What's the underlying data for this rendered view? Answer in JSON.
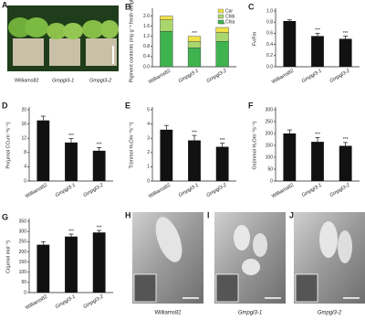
{
  "chart_data": [
    {
      "type": "stacked_bar",
      "panel": "B",
      "ylabel": "Pigment contents (mg g⁻¹ fresh weight)",
      "categories": [
        "Williams82",
        "Gmpgl3-1",
        "Gmpgl3-2"
      ],
      "series": [
        {
          "name": "Chla",
          "color": "#3fb34f",
          "values": [
            1.4,
            0.75,
            1.0
          ]
        },
        {
          "name": "Chlb",
          "color": "#a9d76e",
          "values": [
            0.45,
            0.25,
            0.35
          ]
        },
        {
          "name": "Car",
          "color": "#efe14a",
          "values": [
            0.15,
            0.2,
            0.2
          ]
        }
      ],
      "annotations": [
        null,
        "***",
        "***"
      ],
      "ylim": [
        0,
        2.2
      ],
      "yticks": [
        {
          "value": 0,
          "label": "0.0"
        },
        0.4,
        0.8,
        1.2,
        1.6,
        {
          "value": 2,
          "label": "2.0"
        }
      ]
    },
    {
      "type": "bar",
      "panel": "C",
      "ylabel": "Fv/Fm",
      "color": "#111111",
      "categories": [
        "Williams82",
        "Gmpgl3-1",
        "Gmpgl3-2"
      ],
      "values": [
        0.82,
        0.55,
        0.5
      ],
      "errors": [
        0.02,
        0.05,
        0.05
      ],
      "annotations": [
        null,
        "***",
        "***"
      ],
      "ylim": [
        0,
        1
      ],
      "yticks": [
        {
          "value": 0,
          "label": "0.0"
        },
        0.2,
        0.4,
        0.6,
        0.8,
        {
          "value": 1,
          "label": "1.0"
        }
      ]
    },
    {
      "type": "bar",
      "panel": "D",
      "ylabel": "Pn(μmol CO₂m⁻²s⁻¹)",
      "color": "#111111",
      "categories": [
        "Williams82",
        "Gmpgl3-1",
        "Gmpgl3-2"
      ],
      "values": [
        17,
        10.8,
        8.5
      ],
      "errors": [
        1.2,
        1.1,
        0.9
      ],
      "annotations": [
        null,
        "***",
        "***"
      ],
      "ylim": [
        0,
        20
      ],
      "yticks": [
        0,
        4,
        8,
        12,
        16,
        20
      ]
    },
    {
      "type": "bar",
      "panel": "E",
      "ylabel": "Tr(mmol H₂Om⁻²s⁻¹)",
      "color": "#111111",
      "categories": [
        "Williams82",
        "Gmpgl3-1",
        "Gmpgl3-2"
      ],
      "values": [
        3.6,
        2.85,
        2.4
      ],
      "errors": [
        0.3,
        0.35,
        0.25
      ],
      "annotations": [
        null,
        "***",
        "***"
      ],
      "ylim": [
        0,
        5
      ],
      "yticks": [
        0,
        1,
        2,
        3,
        4,
        5
      ]
    },
    {
      "type": "bar",
      "panel": "F",
      "ylabel": "Gs(mmol H₂Om⁻²s⁻¹)",
      "color": "#111111",
      "categories": [
        "Williams82",
        "Gmpgl3-1",
        "Gmpgl3-2"
      ],
      "values": [
        200,
        165,
        148
      ],
      "errors": [
        15,
        18,
        14
      ],
      "annotations": [
        null,
        "***",
        "***"
      ],
      "ylim": [
        0,
        300
      ],
      "yticks": [
        0,
        50,
        100,
        150,
        200,
        250,
        300
      ]
    },
    {
      "type": "bar",
      "panel": "G",
      "ylabel": "Ci(μmol mol⁻¹)",
      "color": "#111111",
      "categories": [
        "Williams82",
        "Gmpgl3-1",
        "Gmpgl3-2"
      ],
      "values": [
        235,
        275,
        295
      ],
      "errors": [
        15,
        12,
        10
      ],
      "annotations": [
        null,
        "***",
        "***"
      ],
      "ylim": [
        0,
        350
      ],
      "yticks": [
        0,
        50,
        100,
        150,
        200,
        250,
        300,
        350
      ]
    }
  ],
  "images": [
    {
      "panel": "A",
      "labels": [
        "Williams82",
        "Gmpgl3-1",
        "Gmpgl3-2"
      ]
    },
    {
      "panel": "H",
      "caption": "Williams82"
    },
    {
      "panel": "I",
      "caption": "Gmpgl3-1"
    },
    {
      "panel": "J",
      "caption": "Gmpgl3-2"
    }
  ]
}
